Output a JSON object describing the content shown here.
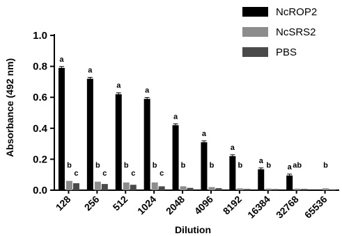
{
  "chart_data": {
    "type": "bar",
    "xlabel": "Dilution",
    "ylabel": "Absorbance (492 nm)",
    "ylim": [
      0,
      1.0
    ],
    "yticks": [
      "0.0",
      "0.2",
      "0.4",
      "0.6",
      "0.8",
      "1.0"
    ],
    "categories": [
      "128",
      "256",
      "512",
      "1024",
      "2048",
      "4096",
      "8192",
      "16384",
      "32768",
      "65536"
    ],
    "legend_position": "top-right",
    "series": [
      {
        "name": "NcROP2",
        "color": "#000000",
        "values": [
          0.79,
          0.72,
          0.62,
          0.59,
          0.42,
          0.31,
          0.22,
          0.135,
          0.095,
          0.0
        ],
        "annotations": [
          "a",
          "a",
          "a",
          "a",
          "a",
          "a",
          "a",
          "a",
          "a",
          ""
        ]
      },
      {
        "name": "NcSRS2",
        "color": "#8c8c8c",
        "values": [
          0.06,
          0.055,
          0.05,
          0.05,
          0.025,
          0.02,
          0.012,
          0.01,
          0.01,
          0.012
        ],
        "annotations": [
          "b",
          "b",
          "b",
          "b",
          "b",
          "b",
          "b",
          "b",
          "ab",
          "b"
        ]
      },
      {
        "name": "PBS",
        "color": "#4a4a4a",
        "values": [
          0.045,
          0.04,
          0.035,
          0.025,
          0.015,
          0.013,
          0.008,
          0.007,
          0.008,
          0.005
        ],
        "annotations": [
          "c",
          "c",
          "c",
          "c",
          "",
          "",
          "",
          "",
          "",
          ""
        ]
      }
    ]
  }
}
